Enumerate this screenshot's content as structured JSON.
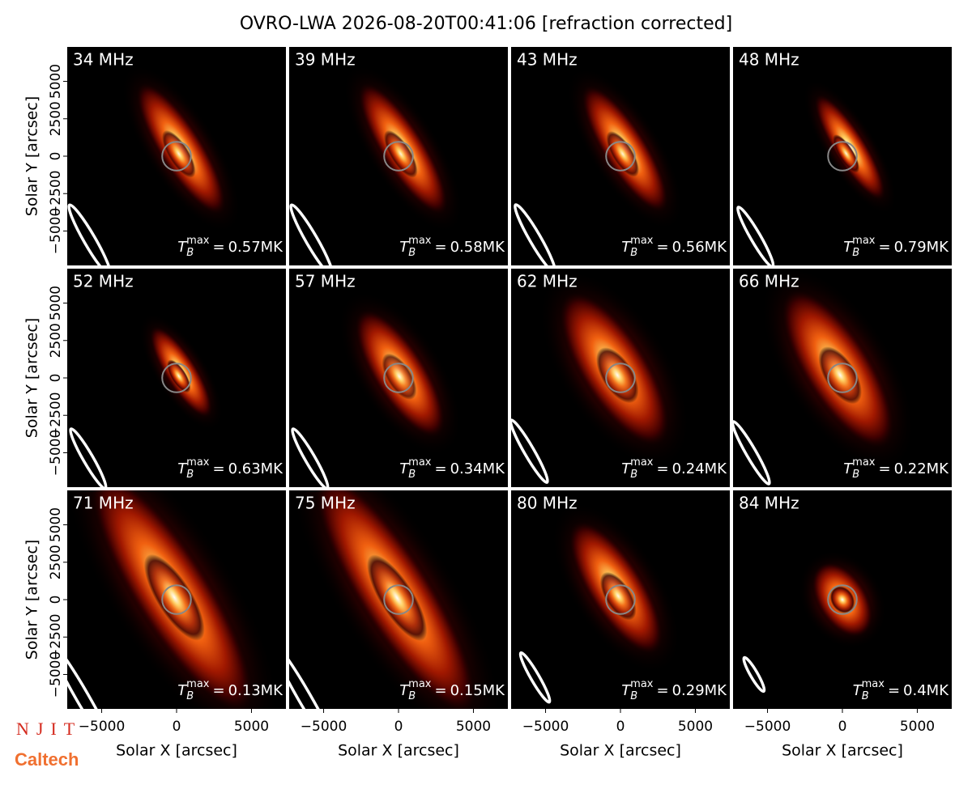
{
  "title": "OVRO-LWA 2026-08-20T00:41:06 [refraction corrected]",
  "logos": [
    "NJIT",
    "Caltech"
  ],
  "tb_symbol": "T",
  "tb_sub": "B",
  "tb_sup": "max",
  "tb_eq": "=",
  "shared_axes": {
    "xlabel": "Solar X [arcsec]",
    "ylabel": "Solar Y [arcsec]",
    "xlim": [
      -7300,
      7300
    ],
    "ylim": [
      -7300,
      7300
    ],
    "xticks": [
      {
        "value": -5000,
        "label": "−5000"
      },
      0,
      5000
    ],
    "yticks": [
      {
        "value": -5000,
        "label": "−5000"
      },
      {
        "value": -2500,
        "label": "−2500"
      },
      0,
      2500,
      5000
    ]
  },
  "chart_data": [
    {
      "type": "image",
      "label": "34 MHz",
      "values": [
        0.57
      ],
      "value_labels": [
        "0.57MK"
      ]
    },
    {
      "type": "image",
      "label": "39 MHz",
      "values": [
        0.58
      ],
      "value_labels": [
        "0.58MK"
      ]
    },
    {
      "type": "image",
      "label": "43 MHz",
      "values": [
        0.56
      ],
      "value_labels": [
        "0.56MK"
      ]
    },
    {
      "type": "image",
      "label": "48 MHz",
      "values": [
        0.79
      ],
      "value_labels": [
        "0.79MK"
      ]
    },
    {
      "type": "image",
      "label": "52 MHz",
      "values": [
        0.63
      ],
      "value_labels": [
        "0.63MK"
      ]
    },
    {
      "type": "image",
      "label": "57 MHz",
      "values": [
        0.34
      ],
      "value_labels": [
        "0.34MK"
      ]
    },
    {
      "type": "image",
      "label": "62 MHz",
      "values": [
        0.24
      ],
      "value_labels": [
        "0.24MK"
      ]
    },
    {
      "type": "image",
      "label": "66 MHz",
      "values": [
        0.22
      ],
      "value_labels": [
        "0.22MK"
      ]
    },
    {
      "type": "image",
      "label": "71 MHz",
      "values": [
        0.13
      ],
      "value_labels": [
        "0.13MK"
      ]
    },
    {
      "type": "image",
      "label": "75 MHz",
      "values": [
        0.15
      ],
      "value_labels": [
        "0.15MK"
      ]
    },
    {
      "type": "image",
      "label": "80 MHz",
      "values": [
        0.29
      ],
      "value_labels": [
        "0.29MK"
      ]
    },
    {
      "type": "image",
      "label": "84 MHz",
      "values": [
        0.4
      ],
      "value_labels": [
        "0.4MK"
      ]
    }
  ]
}
